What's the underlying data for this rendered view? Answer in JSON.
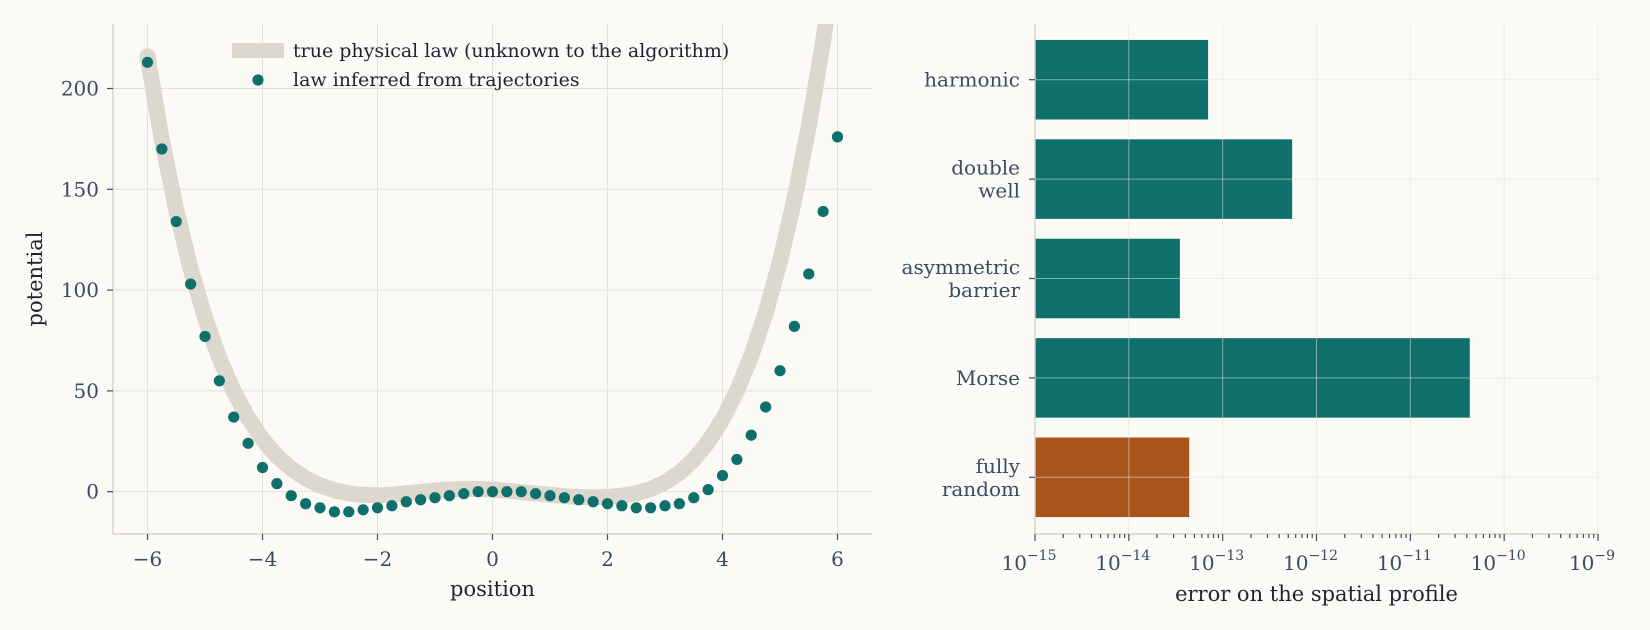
{
  "chart_data": [
    {
      "type": "line",
      "xlabel": "position",
      "ylabel": "potential",
      "xlim": [
        -6.6,
        6.6
      ],
      "ylim": [
        -21,
        232
      ],
      "xticks": [
        -6,
        -4,
        -2,
        0,
        2,
        4,
        6
      ],
      "yticks": [
        0,
        50,
        100,
        150,
        200
      ],
      "xtick_labels": [
        "−6",
        "−4",
        "−2",
        "0",
        "2",
        "4",
        "6"
      ],
      "ytick_labels": [
        "0",
        "50",
        "100",
        "150",
        "200"
      ],
      "grid": true,
      "legend_placement": "top-center",
      "series": [
        {
          "name": "true physical law (unknown to the algorithm)",
          "style": "line",
          "color": "#ddd8ce",
          "x": [
            -6,
            -5.75,
            -5.5,
            -5.25,
            -5,
            -4.75,
            -4.5,
            -4.25,
            -4,
            -3.75,
            -3.5,
            -3.25,
            -3,
            -2.75,
            -2.5,
            -2.25,
            -2,
            -1.75,
            -1.5,
            -1.25,
            -1,
            -0.75,
            -0.5,
            -0.25,
            0,
            0.25,
            0.5,
            0.75,
            1,
            1.25,
            1.5,
            1.75,
            2,
            2.25,
            2.5,
            2.75,
            3,
            3.25,
            3.5,
            3.75,
            4,
            4.25,
            4.5,
            4.75,
            5,
            5.25,
            5.5,
            5.75,
            6
          ],
          "y": [
            216,
            174.6,
            139.8,
            110.6,
            86.3,
            66.2,
            49.8,
            36.6,
            26,
            17.7,
            11.4,
            6.6,
            3.1,
            0.7,
            -0.8,
            -1.6,
            -1.8,
            -1.5,
            -0.8,
            -0.1,
            0.6,
            1.1,
            1.4,
            1.4,
            1,
            0.5,
            -0.2,
            -0.9,
            -1.6,
            -2.2,
            -2.6,
            -2.8,
            -2.6,
            -2,
            -0.8,
            1.3,
            4.6,
            9.3,
            15.9,
            24.6,
            35.8,
            49.9,
            67.3,
            88.6,
            114.3,
            144.9,
            181.1,
            223.5,
            272.8
          ]
        },
        {
          "name": "law inferred from trajectories",
          "style": "markers",
          "color": "#0f6f6a",
          "x": [
            -6,
            -5.75,
            -5.5,
            -5.25,
            -5,
            -4.75,
            -4.5,
            -4.25,
            -4,
            -3.75,
            -3.5,
            -3.25,
            -3,
            -2.75,
            -2.5,
            -2.25,
            -2,
            -1.75,
            -1.5,
            -1.25,
            -1,
            -0.75,
            -0.5,
            -0.25,
            0,
            0.25,
            0.5,
            0.75,
            1,
            1.25,
            1.5,
            1.75,
            2,
            2.25,
            2.5,
            2.75,
            3,
            3.25,
            3.5,
            3.75,
            4,
            4.25,
            4.5,
            4.75,
            5,
            5.25,
            5.5,
            5.75,
            6
          ],
          "y": [
            213,
            170,
            134,
            103,
            77,
            55,
            37,
            24,
            12,
            4,
            -2,
            -6,
            -8,
            -10,
            -10,
            -9,
            -8,
            -7,
            -5,
            -4,
            -3,
            -2,
            -1,
            0,
            0,
            0,
            0,
            -1,
            -2,
            -3,
            -4,
            -5,
            -6,
            -7,
            -8,
            -8,
            -7,
            -6,
            -3,
            1,
            8,
            16,
            28,
            42,
            60,
            82,
            108,
            139,
            176
          ]
        }
      ]
    },
    {
      "type": "bar",
      "orientation": "horizontal",
      "xlabel": "error on the spatial profile",
      "ylabel": "",
      "xscale": "log",
      "xlim": [
        1e-15,
        1e-09
      ],
      "xticks": [
        1e-15,
        1e-14,
        1e-13,
        1e-12,
        1e-11,
        1e-10,
        1e-09
      ],
      "xtick_labels": [
        {
          "base": "10",
          "exp": "−15"
        },
        {
          "base": "10",
          "exp": "−14"
        },
        {
          "base": "10",
          "exp": "−13"
        },
        {
          "base": "10",
          "exp": "−12"
        },
        {
          "base": "10",
          "exp": "−11"
        },
        {
          "base": "10",
          "exp": "−10"
        },
        {
          "base": "10",
          "exp": "−9"
        }
      ],
      "grid": true,
      "categories": [
        [
          "harmonic"
        ],
        [
          "double",
          "well"
        ],
        [
          "asymmetric",
          "barrier"
        ],
        [
          "Morse"
        ],
        [
          "fully",
          "random"
        ]
      ],
      "values": [
        7e-14,
        5.5e-13,
        3.5e-14,
        4.3e-11,
        4.4e-14
      ],
      "colors": [
        "#0f6f6a",
        "#0f6f6a",
        "#0f6f6a",
        "#0f6f6a",
        "#a8561c"
      ]
    }
  ]
}
